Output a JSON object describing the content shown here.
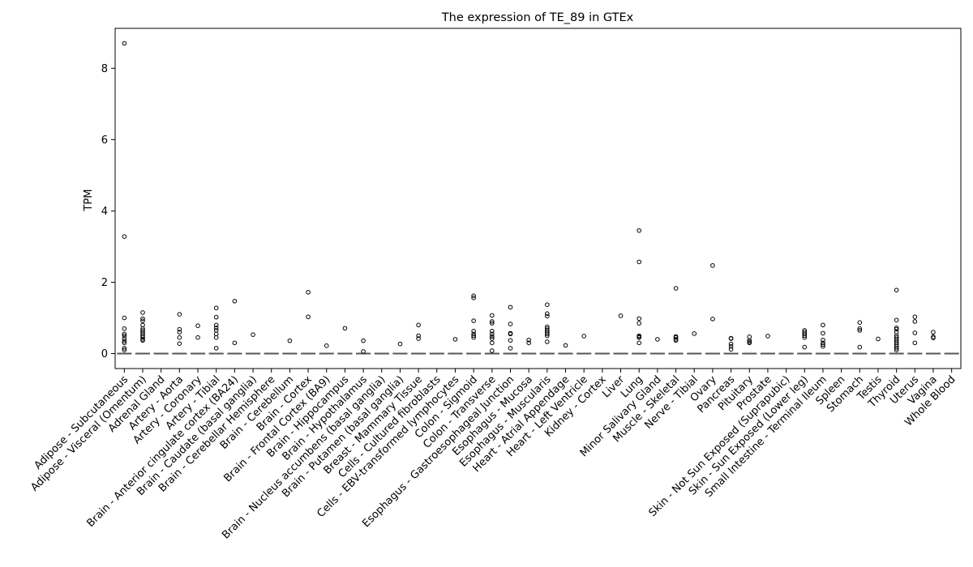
{
  "chart_data": {
    "type": "box",
    "title": "The expression of TE_89 in GTEx",
    "xlabel": "",
    "ylabel": "TPM",
    "ylim": [
      -0.42,
      9.12
    ],
    "yticks": [
      0,
      2,
      4,
      6,
      8
    ],
    "categories": [
      "Adipose - Subcutaneous",
      "Adipose - Visceral (Omentum)",
      "Adrenal Gland",
      "Artery - Aorta",
      "Artery - Coronary",
      "Artery - Tibial",
      "Brain - Anterior cingulate cortex (BA24)",
      "Brain - Caudate (basal ganglia)",
      "Brain - Cerebellar Hemisphere",
      "Brain - Cerebellum",
      "Brain - Cortex",
      "Brain - Frontal Cortex (BA9)",
      "Brain - Hippocampus",
      "Brain - Hypothalamus",
      "Brain - Nucleus accumbens (basal ganglia)",
      "Brain - Putamen (basal ganglia)",
      "Breast - Mammary Tissue",
      "Cells - Cultured fibroblasts",
      "Cells - EBV-transformed lymphocytes",
      "Colon - Sigmoid",
      "Colon - Transverse",
      "Esophagus - Gastroesophageal Junction",
      "Esophagus - Mucosa",
      "Esophagus - Muscularis",
      "Heart - Atrial Appendage",
      "Heart - Left Ventricle",
      "Kidney - Cortex",
      "Liver",
      "Lung",
      "Minor Salivary Gland",
      "Muscle - Skeletal",
      "Nerve - Tibial",
      "Ovary",
      "Pancreas",
      "Pituitary",
      "Prostate",
      "Skin - Not Sun Exposed (Suprapubic)",
      "Skin - Sun Exposed (Lower leg)",
      "Small Intestine - Terminal Ileum",
      "Spleen",
      "Stomach",
      "Testis",
      "Thyroid",
      "Uterus",
      "Vagina",
      "Whole Blood"
    ],
    "median": 0,
    "outliers": [
      [
        8.7,
        3.28,
        1.0,
        0.7,
        0.55,
        0.5,
        0.42,
        0.35,
        0.3,
        0.15,
        0.1
      ],
      [
        1.15,
        0.98,
        0.92,
        0.8,
        0.7,
        0.65,
        0.6,
        0.55,
        0.5,
        0.45,
        0.4,
        0.37
      ],
      [],
      [
        1.1,
        0.68,
        0.6,
        0.45,
        0.28
      ],
      [
        0.78,
        0.45
      ],
      [
        1.28,
        1.02,
        0.8,
        0.72,
        0.65,
        0.55,
        0.45,
        0.15
      ],
      [
        1.47,
        0.3
      ],
      [
        0.53
      ],
      [],
      [
        0.36
      ],
      [
        1.72,
        1.03
      ],
      [
        0.22
      ],
      [
        0.71
      ],
      [
        0.36,
        0.06
      ],
      [],
      [
        0.27
      ],
      [
        0.8,
        0.5,
        0.42
      ],
      [],
      [
        0.4
      ],
      [
        1.62,
        1.56,
        0.92,
        0.63,
        0.55,
        0.5,
        0.45
      ],
      [
        1.07,
        0.9,
        0.85,
        0.63,
        0.55,
        0.48,
        0.42,
        0.3,
        0.08
      ],
      [
        1.3,
        0.83,
        0.57,
        0.55,
        0.37,
        0.15
      ],
      [
        0.38,
        0.3
      ],
      [
        1.37,
        1.12,
        1.05,
        0.75,
        0.7,
        0.65,
        0.6,
        0.55,
        0.5,
        0.33
      ],
      [
        0.23
      ],
      [
        0.49
      ],
      [],
      [
        1.06
      ],
      [
        3.45,
        2.57,
        0.98,
        0.85,
        0.5,
        0.47,
        0.45,
        0.3
      ],
      [
        0.4
      ],
      [
        1.83,
        0.48,
        0.45,
        0.4,
        0.37
      ],
      [
        0.56
      ],
      [
        2.47,
        0.97
      ],
      [
        0.43,
        0.42,
        0.27,
        0.2,
        0.12
      ],
      [
        0.47,
        0.37,
        0.33,
        0.3
      ],
      [
        0.49
      ],
      [],
      [
        0.65,
        0.6,
        0.55,
        0.5,
        0.45,
        0.18
      ],
      [
        0.8,
        0.57,
        0.38,
        0.3,
        0.25,
        0.2
      ],
      [],
      [
        0.87,
        0.7,
        0.65,
        0.18
      ],
      [
        0.41
      ],
      [
        1.78,
        0.94,
        0.72,
        0.68,
        0.6,
        0.5,
        0.45,
        0.4,
        0.35,
        0.3,
        0.25,
        0.2,
        0.15,
        0.1
      ],
      [
        1.03,
        0.9,
        0.58,
        0.3
      ],
      [
        0.6,
        0.47,
        0.44
      ],
      []
    ]
  }
}
